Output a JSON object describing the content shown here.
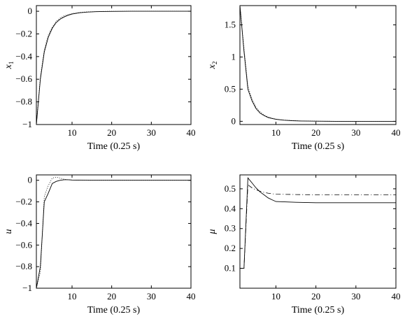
{
  "chart_data": [
    {
      "type": "line",
      "xlabel": "Time (0.25 s)",
      "ylabel": "x",
      "ylabel_sub": "1",
      "xlim": [
        1,
        40
      ],
      "ylim": [
        -1,
        0.05
      ],
      "xticks": [
        10,
        20,
        30,
        40
      ],
      "yticks": [
        0,
        -0.2,
        -0.4,
        -0.6,
        -0.8,
        -1
      ],
      "grid": false,
      "series": [
        {
          "style": "solid",
          "x": [
            1,
            2,
            3,
            4,
            5,
            6,
            7,
            8,
            9,
            10,
            12,
            14,
            16,
            18,
            20,
            25,
            30,
            35,
            40
          ],
          "values": [
            -1,
            -0.6,
            -0.36,
            -0.23,
            -0.15,
            -0.1,
            -0.07,
            -0.05,
            -0.035,
            -0.025,
            -0.013,
            -0.007,
            -0.004,
            -0.002,
            -0.001,
            0,
            0,
            0,
            0
          ]
        },
        {
          "style": "dotted",
          "x": [
            1,
            2,
            3,
            4,
            5,
            6,
            7,
            8,
            9,
            10,
            12,
            14,
            16,
            18,
            20,
            25,
            30,
            35,
            40
          ],
          "values": [
            -1,
            -0.58,
            -0.34,
            -0.21,
            -0.14,
            -0.09,
            -0.06,
            -0.04,
            -0.03,
            -0.02,
            -0.01,
            -0.005,
            -0.003,
            -0.001,
            0,
            0,
            0,
            0,
            0
          ]
        }
      ]
    },
    {
      "type": "line",
      "xlabel": "Time (0.25 s)",
      "ylabel": "x",
      "ylabel_sub": "2",
      "xlim": [
        1,
        40
      ],
      "ylim": [
        -0.05,
        1.8
      ],
      "xticks": [
        10,
        20,
        30,
        40
      ],
      "yticks": [
        0,
        0.5,
        1,
        1.5
      ],
      "grid": false,
      "series": [
        {
          "style": "solid",
          "x": [
            1,
            2,
            3,
            4,
            5,
            6,
            7,
            8,
            9,
            10,
            12,
            14,
            16,
            18,
            20,
            25,
            30,
            35,
            40
          ],
          "values": [
            1.8,
            1.1,
            0.5,
            0.32,
            0.2,
            0.13,
            0.09,
            0.06,
            0.045,
            0.03,
            0.018,
            0.01,
            0.006,
            0.003,
            0.002,
            0,
            0,
            0,
            0
          ]
        },
        {
          "style": "dotted",
          "x": [
            1,
            2,
            3,
            4,
            5,
            6,
            7,
            8,
            9,
            10,
            12,
            14,
            16,
            18,
            20,
            25,
            30,
            35,
            40
          ],
          "values": [
            1.8,
            1.15,
            0.55,
            0.35,
            0.22,
            0.15,
            0.1,
            0.07,
            0.05,
            0.035,
            0.02,
            0.012,
            0.007,
            0.004,
            0.002,
            0,
            0,
            0,
            0
          ]
        }
      ]
    },
    {
      "type": "line",
      "xlabel": "Time (0.25 s)",
      "ylabel": "u",
      "ylabel_sub": "",
      "xlim": [
        1,
        40
      ],
      "ylim": [
        -1,
        0.05
      ],
      "xticks": [
        10,
        20,
        30,
        40
      ],
      "yticks": [
        0,
        -0.2,
        -0.4,
        -0.6,
        -0.8,
        -1
      ],
      "grid": false,
      "series": [
        {
          "style": "solid",
          "x": [
            1,
            2,
            3,
            4,
            5,
            6,
            7,
            8,
            9,
            10,
            12,
            15,
            20,
            30,
            40
          ],
          "values": [
            -1,
            -0.8,
            -0.2,
            -0.12,
            -0.03,
            -0.01,
            0,
            0.005,
            0.005,
            0.003,
            0.001,
            0,
            0,
            0,
            0
          ]
        },
        {
          "style": "dotted",
          "x": [
            1,
            2,
            3,
            4,
            5,
            6,
            7,
            8,
            9,
            10,
            12,
            15,
            20,
            30,
            40
          ],
          "values": [
            -1,
            -0.85,
            -0.15,
            -0.05,
            0.02,
            0.03,
            0.02,
            0.01,
            0.005,
            0.002,
            0.001,
            0,
            0,
            0,
            0
          ]
        }
      ]
    },
    {
      "type": "line",
      "xlabel": "Time (0.25 s)",
      "ylabel": "μ",
      "ylabel_sub": "",
      "xlim": [
        1,
        40
      ],
      "ylim": [
        0,
        0.57
      ],
      "xticks": [
        10,
        20,
        30,
        40
      ],
      "yticks": [
        0.1,
        0.2,
        0.3,
        0.4,
        0.5
      ],
      "grid": false,
      "series": [
        {
          "style": "solid",
          "x": [
            1,
            2,
            2.01,
            3,
            4,
            5,
            6,
            7,
            8,
            9,
            10,
            15,
            20,
            25,
            30,
            35,
            40
          ],
          "values": [
            0.1,
            0.1,
            0.1,
            0.555,
            0.53,
            0.505,
            0.485,
            0.47,
            0.455,
            0.445,
            0.436,
            0.432,
            0.43,
            0.43,
            0.43,
            0.43,
            0.43
          ]
        },
        {
          "style": "dashdot",
          "x": [
            1,
            2,
            2.01,
            3,
            4,
            5,
            6,
            7,
            8,
            9,
            10,
            15,
            20,
            25,
            30,
            35,
            40
          ],
          "values": [
            0.1,
            0.1,
            0.1,
            0.52,
            0.505,
            0.495,
            0.488,
            0.482,
            0.478,
            0.475,
            0.473,
            0.471,
            0.47,
            0.47,
            0.47,
            0.47,
            0.47
          ]
        }
      ]
    }
  ]
}
